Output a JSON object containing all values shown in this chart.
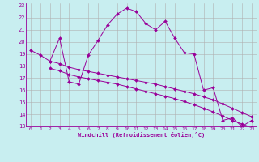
{
  "xlabel": "Windchill (Refroidissement éolien,°C)",
  "background_color": "#c8eef0",
  "grid_color": "#b0b0b0",
  "line_color": "#990099",
  "xlim": [
    -0.5,
    23.5
  ],
  "ylim": [
    13,
    23.2
  ],
  "xticks": [
    0,
    1,
    2,
    3,
    4,
    5,
    6,
    7,
    8,
    9,
    10,
    11,
    12,
    13,
    14,
    15,
    16,
    17,
    18,
    19,
    20,
    21,
    22,
    23
  ],
  "yticks": [
    13,
    14,
    15,
    16,
    17,
    18,
    19,
    20,
    21,
    22,
    23
  ],
  "curve1_x": [
    0,
    1,
    2,
    3,
    4,
    5,
    6,
    7,
    8,
    9,
    10,
    11,
    12,
    13,
    14,
    15,
    16,
    17,
    18,
    19,
    20,
    21,
    22,
    23
  ],
  "curve1_y": [
    19.3,
    18.9,
    18.4,
    20.3,
    16.7,
    16.5,
    18.9,
    20.1,
    21.4,
    22.3,
    22.8,
    22.5,
    21.5,
    21.0,
    21.7,
    20.3,
    19.1,
    19.0,
    16.0,
    16.2,
    13.5,
    13.7,
    13.0,
    13.5
  ],
  "curve2_x": [
    2,
    3,
    4,
    5,
    6,
    7,
    8,
    9,
    10,
    11,
    12,
    13,
    14,
    15,
    16,
    17,
    18,
    19,
    20,
    21,
    22,
    23
  ],
  "curve2_y": [
    18.4,
    18.2,
    17.9,
    17.7,
    17.55,
    17.4,
    17.25,
    17.1,
    16.95,
    16.8,
    16.65,
    16.5,
    16.3,
    16.1,
    15.9,
    15.7,
    15.45,
    15.2,
    14.85,
    14.5,
    14.15,
    13.8
  ],
  "curve3_x": [
    2,
    3,
    4,
    5,
    6,
    7,
    8,
    9,
    10,
    11,
    12,
    13,
    14,
    15,
    16,
    17,
    18,
    19,
    20,
    21,
    22,
    23
  ],
  "curve3_y": [
    17.8,
    17.6,
    17.3,
    17.1,
    16.95,
    16.8,
    16.65,
    16.5,
    16.3,
    16.1,
    15.9,
    15.7,
    15.5,
    15.3,
    15.05,
    14.8,
    14.5,
    14.2,
    13.85,
    13.5,
    13.2,
    12.9
  ]
}
